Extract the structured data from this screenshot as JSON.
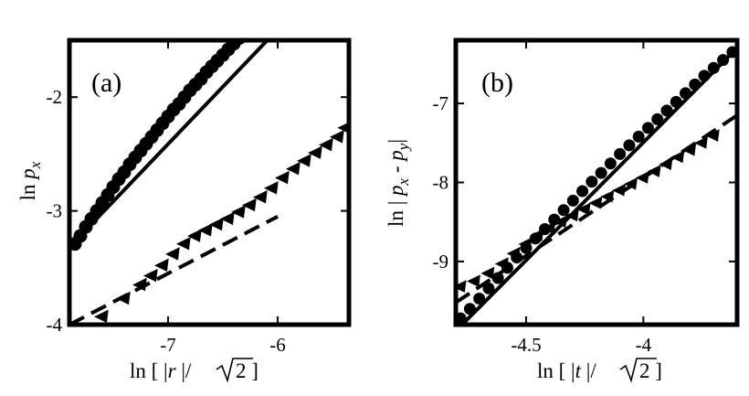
{
  "chart_data": [
    {
      "type": "scatter",
      "panel_label": "(a)",
      "xlabel": "ln [ |r |/√2 ]",
      "ylabel": "ln p_x",
      "xlim": [
        -7.9,
        -5.35
      ],
      "ylim": [
        -4.0,
        -1.5
      ],
      "x_ticks": [
        -7,
        -6
      ],
      "x_tick_labels": [
        "-7",
        "-6"
      ],
      "y_ticks": [
        -4,
        -3,
        -2
      ],
      "y_tick_labels": [
        "-4",
        "-3",
        "-2"
      ],
      "grid": false,
      "series": [
        {
          "marker": "circle",
          "x": [
            -7.85,
            -7.8,
            -7.75,
            -7.7,
            -7.65,
            -7.6,
            -7.55,
            -7.5,
            -7.45,
            -7.4,
            -7.35,
            -7.3,
            -7.25,
            -7.2,
            -7.15,
            -7.1,
            -7.05,
            -7.0,
            -6.95,
            -6.9,
            -6.85,
            -6.8,
            -6.75,
            -6.7,
            -6.65,
            -6.6,
            -6.55,
            -6.5,
            -6.45,
            -6.4,
            -6.35,
            -6.3,
            -6.25,
            -6.2,
            -6.15,
            -6.1
          ],
          "y": [
            -3.29,
            -3.22,
            -3.14,
            -3.07,
            -3.0,
            -2.93,
            -2.86,
            -2.79,
            -2.72,
            -2.66,
            -2.59,
            -2.53,
            -2.47,
            -2.41,
            -2.35,
            -2.29,
            -2.23,
            -2.17,
            -2.11,
            -2.06,
            -2.0,
            -1.94,
            -1.89,
            -1.84,
            -1.78,
            -1.73,
            -1.68,
            -1.63,
            -1.58,
            -1.53,
            -1.48,
            -1.43,
            -1.38,
            -1.33,
            -1.28,
            -1.23
          ]
        },
        {
          "marker": "triangle",
          "x": [
            -7.6,
            -7.4,
            -7.25,
            -7.15,
            -7.05,
            -6.95,
            -6.85,
            -6.75,
            -6.65,
            -6.55,
            -6.45,
            -6.35,
            -6.25,
            -6.15,
            -6.05,
            -5.95,
            -5.85,
            -5.75,
            -5.65,
            -5.55,
            -5.45,
            -5.38
          ],
          "y": [
            -3.93,
            -3.77,
            -3.65,
            -3.57,
            -3.48,
            -3.38,
            -3.29,
            -3.22,
            -3.17,
            -3.12,
            -3.07,
            -3.01,
            -2.95,
            -2.88,
            -2.8,
            -2.71,
            -2.63,
            -2.56,
            -2.49,
            -2.42,
            -2.35,
            -2.27
          ]
        },
        {
          "type": "line",
          "style": "solid",
          "x": [
            -7.95,
            -5.35
          ],
          "y": [
            -3.37,
            -0.75
          ]
        },
        {
          "type": "line",
          "style": "dashed",
          "x": [
            -7.9,
            -6.0
          ],
          "y": [
            -4.0,
            -3.05
          ]
        }
      ]
    },
    {
      "type": "scatter",
      "panel_label": "(b)",
      "xlabel": "ln [ |t |/√2 ]",
      "ylabel": "ln | p_x - p_y |",
      "xlim": [
        -4.8,
        -3.6
      ],
      "ylim": [
        -9.8,
        -6.2
      ],
      "x_ticks": [
        -4.5,
        -4
      ],
      "x_tick_labels": [
        "-4.5",
        "-4"
      ],
      "y_ticks": [
        -9,
        -8,
        -7
      ],
      "y_tick_labels": [
        "-9",
        "-8",
        "-7"
      ],
      "grid": false,
      "series": [
        {
          "marker": "circle",
          "x": [
            -4.78,
            -4.74,
            -4.7,
            -4.66,
            -4.62,
            -4.58,
            -4.54,
            -4.5,
            -4.46,
            -4.42,
            -4.38,
            -4.34,
            -4.3,
            -4.26,
            -4.22,
            -4.18,
            -4.14,
            -4.1,
            -4.06,
            -4.02,
            -3.98,
            -3.94,
            -3.9,
            -3.86,
            -3.82,
            -3.78,
            -3.74,
            -3.7,
            -3.66,
            -3.62
          ],
          "y": [
            -9.72,
            -9.6,
            -9.47,
            -9.34,
            -9.21,
            -9.08,
            -8.95,
            -8.83,
            -8.71,
            -8.59,
            -8.47,
            -8.35,
            -8.23,
            -8.11,
            -7.99,
            -7.88,
            -7.76,
            -7.64,
            -7.53,
            -7.42,
            -7.31,
            -7.2,
            -7.09,
            -6.98,
            -6.87,
            -6.76,
            -6.65,
            -6.55,
            -6.45,
            -6.35
          ]
        },
        {
          "marker": "triangle",
          "x": [
            -4.78,
            -4.72,
            -4.66,
            -4.6,
            -4.55,
            -4.5,
            -4.45,
            -4.4,
            -4.35,
            -4.3,
            -4.25,
            -4.2,
            -4.15,
            -4.1,
            -4.05,
            -4.0,
            -3.95,
            -3.9,
            -3.85,
            -3.8,
            -3.75,
            -3.7
          ],
          "y": [
            -9.32,
            -9.25,
            -9.15,
            -9.03,
            -8.9,
            -8.78,
            -8.67,
            -8.58,
            -8.5,
            -8.42,
            -8.34,
            -8.26,
            -8.18,
            -8.1,
            -8.02,
            -7.94,
            -7.86,
            -7.77,
            -7.68,
            -7.59,
            -7.5,
            -7.41
          ]
        },
        {
          "type": "line",
          "style": "solid",
          "x": [
            -4.79,
            -3.6
          ],
          "y": [
            -9.85,
            -6.3
          ]
        },
        {
          "type": "line",
          "style": "dashed",
          "x": [
            -4.8,
            -3.6
          ],
          "y": [
            -9.52,
            -7.15
          ]
        }
      ]
    }
  ]
}
